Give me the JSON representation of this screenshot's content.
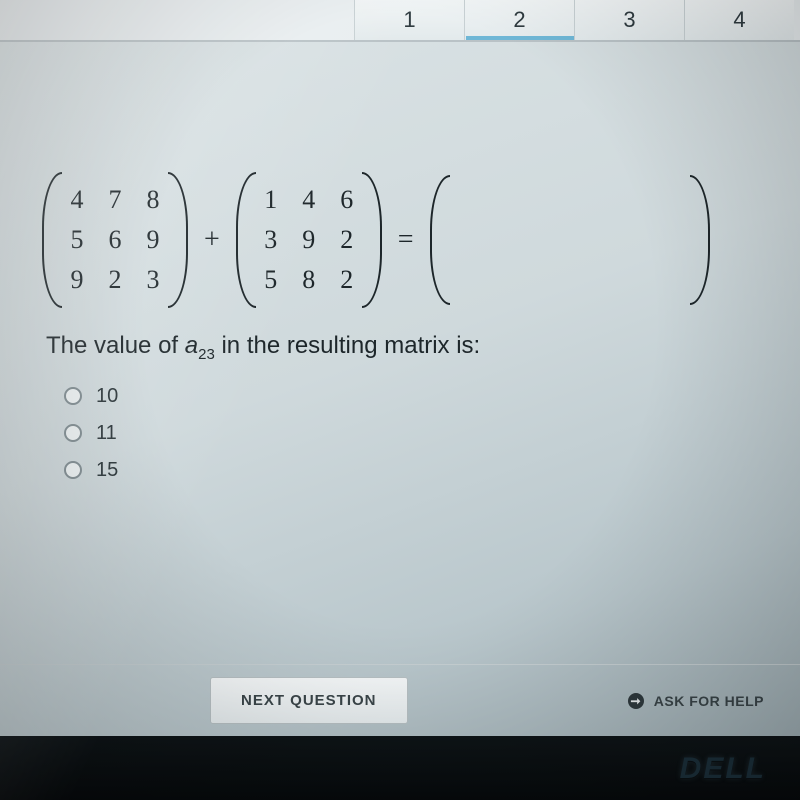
{
  "tabs": {
    "n1": "1",
    "n2": "2",
    "n3": "3",
    "n4": "4"
  },
  "matrixA": {
    "r0c0": "4",
    "r0c1": "7",
    "r0c2": "8",
    "r1c0": "5",
    "r1c1": "6",
    "r1c2": "9",
    "r2c0": "9",
    "r2c1": "2",
    "r2c2": "3"
  },
  "matrixB": {
    "r0c0": "1",
    "r0c1": "4",
    "r0c2": "6",
    "r1c0": "3",
    "r1c1": "9",
    "r1c2": "2",
    "r2c0": "5",
    "r2c1": "8",
    "r2c2": "2"
  },
  "ops": {
    "plus": "+",
    "eq": "="
  },
  "question": {
    "pre": "The value of ",
    "var": "a",
    "sub": "23",
    "post": " in the resulting matrix is:"
  },
  "options": {
    "o1": "10",
    "o2": "11",
    "o3": "15"
  },
  "footer": {
    "next": "NEXT QUESTION",
    "ask": "ASK FOR HELP",
    "ask_icon": "➞"
  },
  "brand": "DELL",
  "colors": {
    "bg_light": "#dce4e6",
    "bg_dark": "#9aaab0",
    "ink": "#1d262a",
    "tab_accent": "#6fb7d6",
    "bezel": "#06090b"
  }
}
